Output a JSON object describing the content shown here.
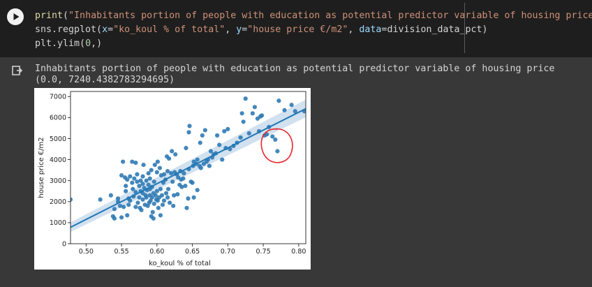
{
  "cell": {
    "code": {
      "line1": {
        "fn": "print",
        "open": "(",
        "str": "\"Inhabitants portion of people with education as potential predictor variable of housing price\"",
        "close": ")"
      },
      "line2": {
        "prefix": "sns.regplot(",
        "k1": "x",
        "eq1": "=",
        "s1": "\"ko_koul % of total\"",
        "sep1": ", ",
        "k2": "y",
        "eq2": "=",
        "s2": "\"house price €/m2\"",
        "sep2": ", ",
        "k3": "data",
        "eq3": "=",
        "v3": "division_data_pct",
        "close": ")"
      },
      "line3": {
        "prefix": "plt.ylim(",
        "n1": "0",
        "rest": ",)"
      }
    },
    "output": {
      "line1": "Inhabitants portion of people with education as potential predictor variable of housing price",
      "line2": "(0.0, 7240.4382783294695)"
    }
  },
  "colors": {
    "point": "#2f7ab5",
    "line": "#1f77b4",
    "band": "#c3d7ea",
    "annotation": "#e8232a"
  },
  "icons": {
    "run": "play-circle-icon",
    "output": "output-arrow-icon"
  },
  "chart_data": {
    "type": "scatter",
    "xlabel": "ko_koul % of total",
    "ylabel": "house price €/m2",
    "xlim": [
      0.478,
      0.81
    ],
    "ylim": [
      0,
      7240.44
    ],
    "xticks": [
      "0.50",
      "0.55",
      "0.60",
      "0.65",
      "0.70",
      "0.75",
      "0.80"
    ],
    "yticks": [
      "0",
      "1000",
      "2000",
      "3000",
      "4000",
      "5000",
      "6000",
      "7000"
    ],
    "regression": {
      "x": [
        0.478,
        0.81
      ],
      "y": [
        780,
        6420
      ]
    },
    "confidence_band": {
      "upper": [
        1010,
        6850
      ],
      "lower": [
        560,
        6010
      ]
    },
    "grid": false,
    "annotation": {
      "shape": "freehand-circle",
      "center": [
        0.768,
        4650
      ],
      "color": "#e8232a"
    },
    "points": [
      [
        0.478,
        2100
      ],
      [
        0.52,
        2100
      ],
      [
        0.535,
        2300
      ],
      [
        0.54,
        1650
      ],
      [
        0.538,
        1300
      ],
      [
        0.54,
        1200
      ],
      [
        0.545,
        2000
      ],
      [
        0.545,
        2150
      ],
      [
        0.548,
        1800
      ],
      [
        0.55,
        3250
      ],
      [
        0.55,
        1250
      ],
      [
        0.552,
        3900
      ],
      [
        0.553,
        1750
      ],
      [
        0.555,
        3150
      ],
      [
        0.556,
        2750
      ],
      [
        0.556,
        2500
      ],
      [
        0.558,
        3050
      ],
      [
        0.558,
        1350
      ],
      [
        0.56,
        2150
      ],
      [
        0.56,
        1850
      ],
      [
        0.562,
        3200
      ],
      [
        0.562,
        2050
      ],
      [
        0.565,
        2900
      ],
      [
        0.565,
        3900
      ],
      [
        0.566,
        2600
      ],
      [
        0.567,
        2250
      ],
      [
        0.568,
        3100
      ],
      [
        0.57,
        3850
      ],
      [
        0.57,
        2450
      ],
      [
        0.57,
        1750
      ],
      [
        0.572,
        3300
      ],
      [
        0.572,
        2950
      ],
      [
        0.573,
        1950
      ],
      [
        0.575,
        2750
      ],
      [
        0.575,
        2200
      ],
      [
        0.576,
        1700
      ],
      [
        0.577,
        3000
      ],
      [
        0.577,
        2500
      ],
      [
        0.578,
        1600
      ],
      [
        0.58,
        2850
      ],
      [
        0.58,
        2400
      ],
      [
        0.58,
        2100
      ],
      [
        0.58,
        3200
      ],
      [
        0.581,
        3750
      ],
      [
        0.582,
        2650
      ],
      [
        0.583,
        1850
      ],
      [
        0.584,
        2300
      ],
      [
        0.585,
        3000
      ],
      [
        0.585,
        2200
      ],
      [
        0.586,
        2550
      ],
      [
        0.587,
        1800
      ],
      [
        0.588,
        3350
      ],
      [
        0.588,
        2800
      ],
      [
        0.589,
        1950
      ],
      [
        0.59,
        2300
      ],
      [
        0.59,
        2600
      ],
      [
        0.59,
        3100
      ],
      [
        0.591,
        2050
      ],
      [
        0.592,
        3500
      ],
      [
        0.592,
        1300
      ],
      [
        0.593,
        2700
      ],
      [
        0.593,
        2200
      ],
      [
        0.594,
        1500
      ],
      [
        0.595,
        1200
      ],
      [
        0.595,
        2400
      ],
      [
        0.596,
        1900
      ],
      [
        0.596,
        2950
      ],
      [
        0.597,
        3750
      ],
      [
        0.598,
        2300
      ],
      [
        0.599,
        2100
      ],
      [
        0.6,
        3400
      ],
      [
        0.6,
        2500
      ],
      [
        0.601,
        2050
      ],
      [
        0.601,
        3900
      ],
      [
        0.602,
        1700
      ],
      [
        0.603,
        2200
      ],
      [
        0.604,
        3600
      ],
      [
        0.605,
        1350
      ],
      [
        0.605,
        2600
      ],
      [
        0.606,
        3250
      ],
      [
        0.607,
        2300
      ],
      [
        0.608,
        1850
      ],
      [
        0.609,
        2900
      ],
      [
        0.61,
        3300
      ],
      [
        0.61,
        2050
      ],
      [
        0.612,
        3050
      ],
      [
        0.613,
        2400
      ],
      [
        0.614,
        4150
      ],
      [
        0.615,
        2200
      ],
      [
        0.615,
        3450
      ],
      [
        0.616,
        2600
      ],
      [
        0.617,
        4050
      ],
      [
        0.618,
        1950
      ],
      [
        0.62,
        3350
      ],
      [
        0.621,
        4400
      ],
      [
        0.622,
        2950
      ],
      [
        0.623,
        1800
      ],
      [
        0.624,
        2300
      ],
      [
        0.625,
        3400
      ],
      [
        0.626,
        4250
      ],
      [
        0.628,
        3300
      ],
      [
        0.629,
        2350
      ],
      [
        0.63,
        3150
      ],
      [
        0.632,
        2800
      ],
      [
        0.633,
        3450
      ],
      [
        0.634,
        3050
      ],
      [
        0.635,
        2700
      ],
      [
        0.637,
        3100
      ],
      [
        0.638,
        3350
      ],
      [
        0.64,
        2750
      ],
      [
        0.641,
        4550
      ],
      [
        0.642,
        1700
      ],
      [
        0.644,
        2150
      ],
      [
        0.645,
        3550
      ],
      [
        0.645,
        5300
      ],
      [
        0.646,
        5600
      ],
      [
        0.648,
        2950
      ],
      [
        0.65,
        2900
      ],
      [
        0.651,
        3700
      ],
      [
        0.652,
        2200
      ],
      [
        0.652,
        3900
      ],
      [
        0.655,
        3800
      ],
      [
        0.657,
        4000
      ],
      [
        0.657,
        2550
      ],
      [
        0.66,
        3700
      ],
      [
        0.661,
        4800
      ],
      [
        0.662,
        3600
      ],
      [
        0.664,
        5150
      ],
      [
        0.666,
        3800
      ],
      [
        0.668,
        5400
      ],
      [
        0.67,
        3900
      ],
      [
        0.672,
        4000
      ],
      [
        0.674,
        3700
      ],
      [
        0.676,
        4400
      ],
      [
        0.678,
        4100
      ],
      [
        0.68,
        4250
      ],
      [
        0.683,
        4300
      ],
      [
        0.685,
        5150
      ],
      [
        0.688,
        4700
      ],
      [
        0.692,
        4000
      ],
      [
        0.695,
        5350
      ],
      [
        0.697,
        4550
      ],
      [
        0.7,
        5450
      ],
      [
        0.703,
        4500
      ],
      [
        0.708,
        4650
      ],
      [
        0.713,
        4800
      ],
      [
        0.718,
        5050
      ],
      [
        0.72,
        6200
      ],
      [
        0.722,
        5800
      ],
      [
        0.725,
        6900
      ],
      [
        0.73,
        5250
      ],
      [
        0.735,
        6200
      ],
      [
        0.738,
        6500
      ],
      [
        0.742,
        5950
      ],
      [
        0.744,
        5350
      ],
      [
        0.746,
        6050
      ],
      [
        0.748,
        6100
      ],
      [
        0.752,
        5150
      ],
      [
        0.755,
        5200
      ],
      [
        0.758,
        5550
      ],
      [
        0.763,
        5100
      ],
      [
        0.767,
        4950
      ],
      [
        0.77,
        4400
      ],
      [
        0.772,
        6800
      ],
      [
        0.78,
        6350
      ],
      [
        0.79,
        6600
      ],
      [
        0.795,
        6300
      ],
      [
        0.808,
        6300
      ]
    ]
  }
}
